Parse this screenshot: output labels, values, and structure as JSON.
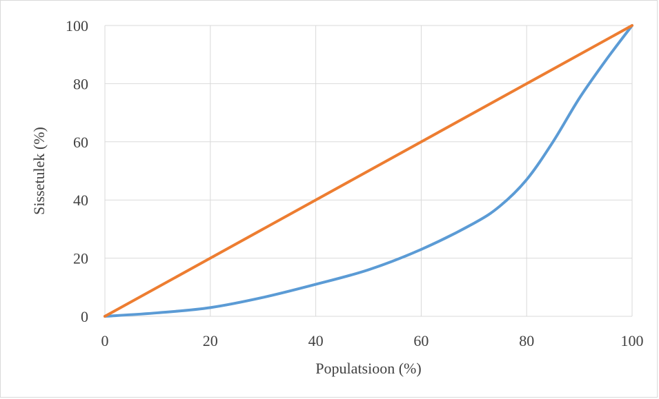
{
  "chart_data": {
    "type": "line",
    "title": "",
    "xlabel": "Populatsioon (%)",
    "ylabel": "Sissetulek (%)",
    "xlim": [
      0,
      100
    ],
    "ylim": [
      0,
      100
    ],
    "x_ticks": [
      0,
      20,
      40,
      60,
      80,
      100
    ],
    "y_ticks": [
      0,
      20,
      40,
      60,
      80,
      100
    ],
    "grid": true,
    "legend": "none",
    "series": [
      {
        "color": "#5b9bd5",
        "x": [
          0,
          10,
          20,
          30,
          40,
          50,
          60,
          70,
          75,
          80,
          85,
          90,
          95,
          100
        ],
        "y": [
          0,
          1.2,
          3,
          6.5,
          11,
          16,
          23,
          32,
          38,
          47,
          60,
          75,
          88,
          100
        ]
      },
      {
        "color": "#ed7d31",
        "x": [
          0,
          100
        ],
        "y": [
          0,
          100
        ]
      }
    ]
  }
}
